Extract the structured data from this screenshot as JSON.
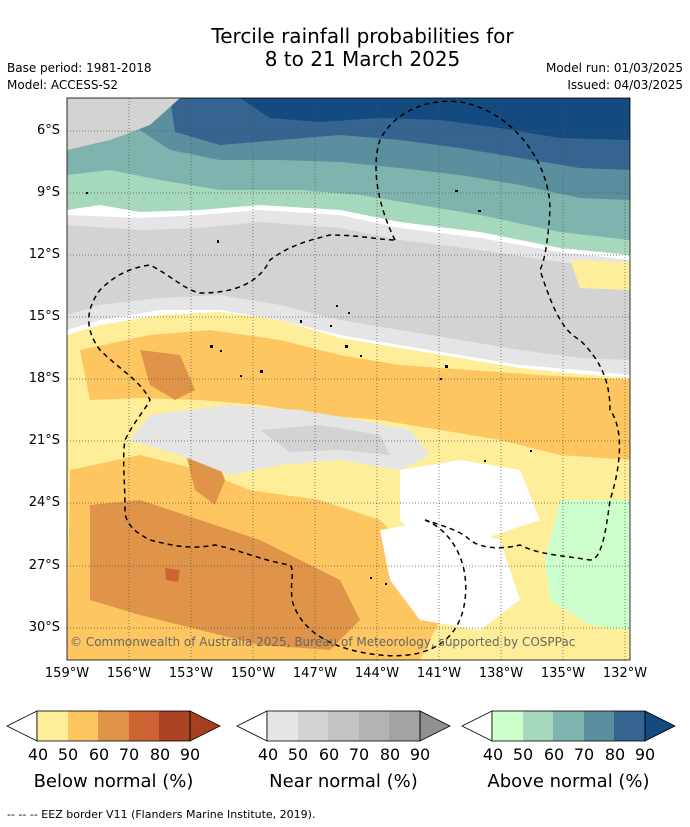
{
  "title_line1": "Tercile rainfall probabilities for",
  "title_line2": "8 to 21 March 2025",
  "base_period": "Base period: 1981-2018",
  "model": "Model: ACCESS-S2",
  "model_run": "Model run: 01/03/2025",
  "issued": "Issued: 04/03/2025",
  "copyright": "© Commonwealth of Australia 2025, Bureau of Meteorology, supported by COSPPac",
  "footnote": "-- -- -- EEZ border V11 (Flanders Marine Institute, 2019).",
  "lat_labels": [
    "6°S",
    "9°S",
    "12°S",
    "15°S",
    "18°S",
    "21°S",
    "24°S",
    "27°S",
    "30°S"
  ],
  "lon_labels": [
    "159°W",
    "156°W",
    "153°W",
    "150°W",
    "147°W",
    "144°W",
    "141°W",
    "138°W",
    "135°W",
    "132°W"
  ],
  "colorbars": [
    {
      "title": "Below normal (%)",
      "ticks": [
        "40",
        "50",
        "60",
        "70",
        "80",
        "90"
      ],
      "colors": [
        "#ffee99",
        "#fdc661",
        "#e0944a",
        "#cc6533",
        "#ab4424",
        "#a84020"
      ]
    },
    {
      "title": "Near normal (%)",
      "ticks": [
        "40",
        "50",
        "60",
        "70",
        "80",
        "90"
      ],
      "colors": [
        "#e5e5e5",
        "#d3d3d3",
        "#c3c3c3",
        "#b3b3b3",
        "#a3a3a3",
        "#909090"
      ]
    },
    {
      "title": "Above normal (%)",
      "ticks": [
        "40",
        "50",
        "60",
        "70",
        "80",
        "90"
      ],
      "colors": [
        "#ccffcc",
        "#a6d8bd",
        "#7fb3ad",
        "#5a8f9d",
        "#34648f",
        "#134a80"
      ]
    }
  ],
  "colors": {
    "below_50": "#ffee99",
    "below_60": "#fdc661",
    "below_70": "#e0944a",
    "below_80": "#cc6533",
    "near_50": "#e5e5e5",
    "near_60": "#d3d3d3",
    "above_50": "#ccffcc",
    "above_60": "#a6d8bd",
    "above_70": "#7fb3ad",
    "above_80": "#5a8f9d",
    "above_90": "#34648f",
    "above_max": "#134a80"
  }
}
